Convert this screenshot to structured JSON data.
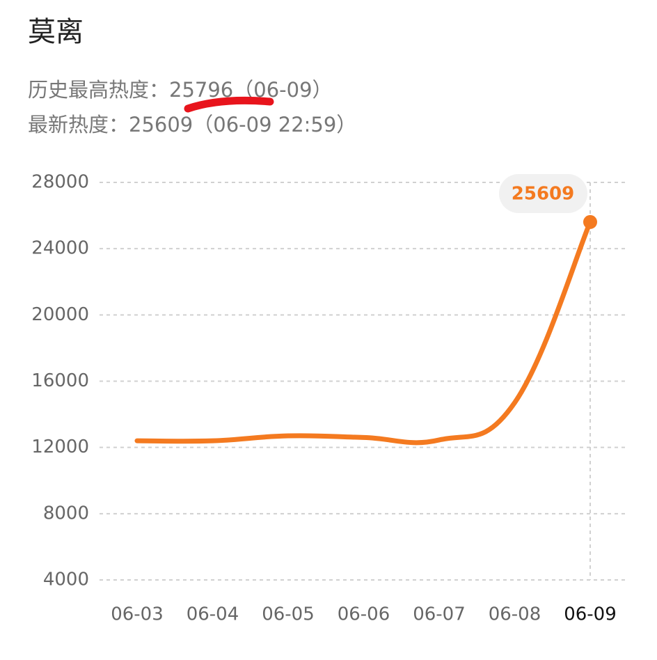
{
  "chart_data": {
    "type": "line",
    "title": "莫离",
    "subtitle": [
      "历史最高热度：25796（06-09）",
      "最新热度：25609（06-09 22:59）"
    ],
    "categories": [
      "06-03",
      "06-04",
      "06-05",
      "06-06",
      "06-07",
      "06-08",
      "06-09"
    ],
    "series": [
      {
        "name": "热度",
        "color": "#f47a20",
        "values": [
          12400,
          12400,
          12700,
          12600,
          12450,
          14700,
          25609
        ]
      }
    ],
    "ylim": [
      4000,
      28000
    ],
    "yticks": [
      4000,
      8000,
      12000,
      16000,
      20000,
      24000,
      28000
    ],
    "grid": true
  }
}
